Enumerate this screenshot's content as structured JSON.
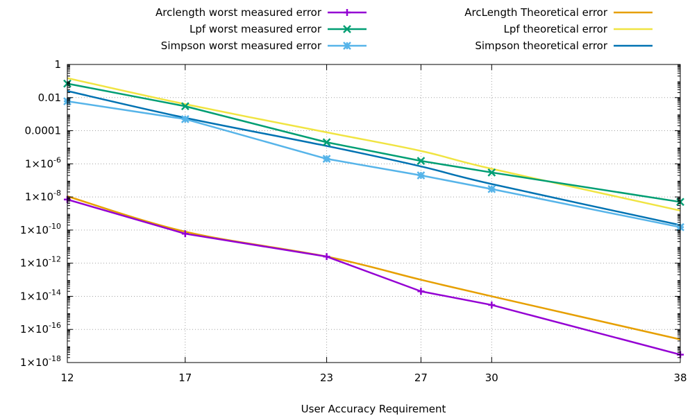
{
  "chart_data": {
    "type": "line",
    "title": "",
    "xlabel": "User Accuracy Requirement",
    "ylabel": "",
    "x_ticks": [
      12,
      17,
      23,
      27,
      30,
      38
    ],
    "xlim": [
      12,
      38
    ],
    "y_scale": "log",
    "ylim": [
      1e-18,
      1
    ],
    "y_ticks": [
      {
        "value": 1,
        "base": "1",
        "exp": ""
      },
      {
        "value": 0.01,
        "base": "0.01",
        "exp": ""
      },
      {
        "value": 0.0001,
        "base": "0.0001",
        "exp": ""
      },
      {
        "value": 1e-06,
        "base": "1×10",
        "exp": "-6"
      },
      {
        "value": 1e-08,
        "base": "1×10",
        "exp": "-8"
      },
      {
        "value": 1e-10,
        "base": "1×10",
        "exp": "-10"
      },
      {
        "value": 1e-12,
        "base": "1×10",
        "exp": "-12"
      },
      {
        "value": 1e-14,
        "base": "1×10",
        "exp": "-14"
      },
      {
        "value": 1e-16,
        "base": "1×10",
        "exp": "-16"
      },
      {
        "value": 1e-18,
        "base": "1×10",
        "exp": "-18"
      }
    ],
    "grid": true,
    "legend_position": "top",
    "series": [
      {
        "name": "Arclength worst measured error",
        "color": "#9400d3",
        "marker": "plus",
        "x": [
          12,
          17,
          23,
          27,
          30,
          38
        ],
        "y": [
          7e-09,
          6e-11,
          2.5e-12,
          2e-14,
          3e-15,
          3e-18
        ]
      },
      {
        "name": "Lpf worst measured error",
        "color": "#009e73",
        "marker": "cross",
        "x": [
          12,
          17,
          23,
          27,
          30,
          38
        ],
        "y": [
          0.07,
          0.003,
          2e-05,
          1.5e-06,
          3e-07,
          5e-09
        ]
      },
      {
        "name": "Simpson worst measured error",
        "color": "#56b4e9",
        "marker": "star",
        "x": [
          12,
          17,
          23,
          27,
          30,
          38
        ],
        "y": [
          0.006,
          0.0005,
          2e-06,
          2e-07,
          3e-08,
          1.5e-10
        ]
      },
      {
        "name": "ArcLength Theoretical error",
        "color": "#e69f00",
        "marker": "none",
        "x": [
          12,
          17,
          23,
          27,
          30,
          38
        ],
        "y": [
          1.1e-08,
          8e-11,
          2.5e-12,
          1e-13,
          1e-14,
          2.5e-17
        ]
      },
      {
        "name": "Lpf theoretical error",
        "color": "#f0e442",
        "marker": "none",
        "x": [
          12,
          17,
          23,
          27,
          30,
          38
        ],
        "y": [
          0.15,
          0.004,
          8e-05,
          6e-06,
          5e-07,
          1.5e-09
        ]
      },
      {
        "name": "Simpson theoretical error",
        "color": "#0072b2",
        "marker": "none",
        "x": [
          12,
          17,
          23,
          27,
          30,
          38
        ],
        "y": [
          0.025,
          0.0006,
          1.2e-05,
          7e-07,
          6e-08,
          2e-10
        ]
      }
    ]
  }
}
